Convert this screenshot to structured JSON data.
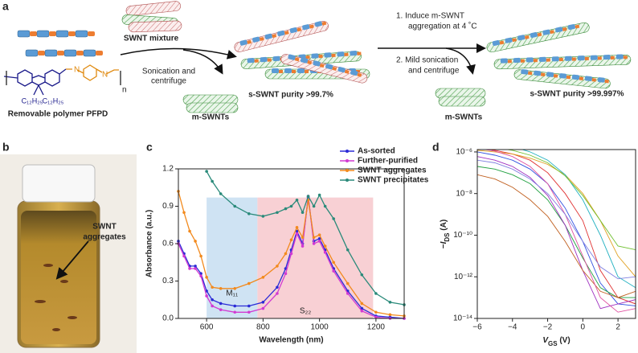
{
  "panels": [
    "a",
    "b",
    "c",
    "d"
  ],
  "schematic": {
    "mixture_label": "SWNT mixture",
    "step1_lines": [
      "Sonication and",
      "centrifuge"
    ],
    "m_swnt_label_1": "m-SWNTs",
    "purity_1": "s-SWNT purity >99.7%",
    "step2_lines": [
      "1.  Induce m-SWNT",
      "aggregation at 4 ˚C",
      "2.  Mild sonication",
      "and centrifuge"
    ],
    "m_swnt_label_2": "m-SWNTs",
    "purity_2": "s-SWNT purity >99.997%",
    "polymer_name": "Removable polymer PFPD",
    "atom_n_1": "N",
    "atom_n_2": "N",
    "repeat": "n",
    "side_chain_1": "C₁₂H₂₅",
    "side_chain_2": "C₁₂H₂₅"
  },
  "photo": {
    "label_lines": [
      "SWNT",
      "aggregates"
    ]
  },
  "chart_data": [
    {
      "type": "line",
      "ylabel": "Absorbance (a.u.)",
      "xlabel": "Wavelength (nm)",
      "x": [
        500,
        520,
        540,
        560,
        580,
        600,
        620,
        650,
        700,
        750,
        800,
        850,
        880,
        900,
        920,
        940,
        960,
        980,
        1000,
        1020,
        1050,
        1100,
        1150,
        1200,
        1250,
        1300
      ],
      "series": [
        {
          "name": "As-sorted",
          "color": "#2b2bd6",
          "values": [
            0.62,
            0.52,
            0.42,
            0.42,
            0.36,
            0.22,
            0.15,
            0.12,
            0.1,
            0.1,
            0.13,
            0.25,
            0.4,
            0.55,
            0.7,
            0.6,
            0.97,
            0.62,
            0.64,
            0.55,
            0.4,
            0.22,
            0.08,
            0.02,
            0.01,
            0.0
          ]
        },
        {
          "name": "Further-purified",
          "color": "#d23ad2",
          "values": [
            0.6,
            0.5,
            0.4,
            0.4,
            0.34,
            0.18,
            0.1,
            0.07,
            0.05,
            0.05,
            0.08,
            0.2,
            0.36,
            0.52,
            0.68,
            0.58,
            0.98,
            0.6,
            0.62,
            0.53,
            0.38,
            0.2,
            0.06,
            0.01,
            0.0,
            0.0
          ]
        },
        {
          "name": "SWNT aggregates",
          "color": "#f28a1e",
          "values": [
            1.02,
            0.85,
            0.7,
            0.62,
            0.5,
            0.33,
            0.25,
            0.24,
            0.24,
            0.28,
            0.33,
            0.42,
            0.52,
            0.63,
            0.73,
            0.65,
            0.95,
            0.65,
            0.67,
            0.58,
            0.45,
            0.28,
            0.12,
            0.05,
            0.03,
            0.02
          ]
        },
        {
          "name": "SWNT precipitates",
          "color": "#2a8a7a",
          "values": [
            null,
            null,
            null,
            null,
            null,
            1.18,
            1.1,
            1.0,
            0.9,
            0.84,
            0.82,
            0.85,
            0.88,
            0.9,
            0.95,
            0.85,
            0.98,
            0.9,
            0.99,
            0.9,
            0.8,
            0.55,
            0.35,
            0.2,
            0.13,
            0.11
          ]
        }
      ],
      "markers": true,
      "legend": "upper right",
      "regions": [
        {
          "label": "M₁₁",
          "from": 600,
          "to": 780,
          "top": 0.97,
          "color": "#cfe3f3"
        },
        {
          "label": "S₂₂",
          "from": 780,
          "to": 1190,
          "top": 0.97,
          "color": "#f8d0d4"
        }
      ],
      "xlim": [
        500,
        1300
      ],
      "xticks": [
        600,
        800,
        1000,
        1200
      ],
      "ylim": [
        0,
        1.2
      ],
      "yticks": [
        {
          "value": 0,
          "label": "0.0"
        },
        0.3,
        0.6,
        0.9,
        1.2
      ]
    },
    {
      "type": "line",
      "ylabel": {
        "sign": "−",
        "var": "I",
        "sub": "DS",
        "unit": " (A)"
      },
      "xlabel": {
        "var": "V",
        "sub": "GS",
        "unit": " (V)"
      },
      "log_y": true,
      "x": [
        -6,
        -5,
        -4,
        -3,
        -2,
        -1,
        0,
        1,
        2,
        3
      ],
      "series": [
        {
          "color": "#e03030",
          "values": [
            1.5e-06,
            1.2e-06,
            8e-07,
            4e-07,
            1e-07,
            1e-08,
            5e-10,
            2e-12,
            1e-13,
            5e-14
          ]
        },
        {
          "color": "#3050e0",
          "values": [
            1e-06,
            7e-07,
            4e-07,
            1.5e-07,
            3e-08,
            2e-09,
            5e-11,
            5e-13,
            5e-14,
            4e-14
          ]
        },
        {
          "color": "#20a040",
          "values": [
            2e-07,
            1.5e-07,
            8e-08,
            3e-08,
            5e-09,
            3e-10,
            8e-12,
            3e-13,
            1e-13,
            1e-13
          ]
        },
        {
          "color": "#e0a020",
          "values": [
            1.2e-06,
            1e-06,
            8e-07,
            5e-07,
            2.5e-07,
            8e-08,
            1e-08,
            5e-10,
            1e-11,
            1e-12
          ]
        },
        {
          "color": "#a030c0",
          "values": [
            6e-07,
            4e-07,
            2e-07,
            6e-08,
            8e-09,
            3e-10,
            2e-12,
            3e-14,
            5e-14,
            8e-14
          ]
        },
        {
          "color": "#20b0c0",
          "values": [
            3e-06,
            2.5e-06,
            1.8e-06,
            1e-06,
            4e-07,
            8e-08,
            5e-09,
            1e-10,
            1e-12,
            3e-13
          ]
        },
        {
          "color": "#c06020",
          "values": [
            8e-08,
            5e-08,
            2e-08,
            5e-09,
            8e-10,
            5e-11,
            2e-12,
            2e-13,
            1e-13,
            2e-13
          ]
        },
        {
          "color": "#e050a0",
          "values": [
            1.5e-06,
            1.1e-06,
            6e-07,
            2e-07,
            3e-08,
            1e-09,
            1e-11,
            1e-13,
            2e-14,
            3e-14
          ]
        },
        {
          "color": "#8080e0",
          "values": [
            4e-07,
            3e-07,
            1.5e-07,
            5e-08,
            1e-08,
            1e-09,
            5e-11,
            3e-12,
            8e-13,
            1e-12
          ]
        },
        {
          "color": "#70c030",
          "values": [
            2e-06,
            1.6e-06,
            1.2e-06,
            7e-07,
            3e-07,
            7e-08,
            8e-09,
            5e-10,
            3e-11,
            2e-11
          ]
        }
      ],
      "xlim": [
        -6,
        3
      ],
      "xticks": [
        {
          "value": -6,
          "label": "−6"
        },
        {
          "value": -4,
          "label": "−4"
        },
        {
          "value": -2,
          "label": "−2"
        },
        0,
        2
      ],
      "ylim": [
        1e-14,
        1.3e-06
      ],
      "yticks": [
        {
          "value": 1e-14,
          "label": "10⁻¹⁴"
        },
        {
          "value": 1e-12,
          "label": "10⁻¹²"
        },
        {
          "value": 1e-10,
          "label": "10⁻¹⁰"
        },
        {
          "value": 1e-08,
          "label": "10⁻⁸"
        },
        {
          "value": 1e-06,
          "label": "10⁻⁶"
        }
      ]
    }
  ]
}
